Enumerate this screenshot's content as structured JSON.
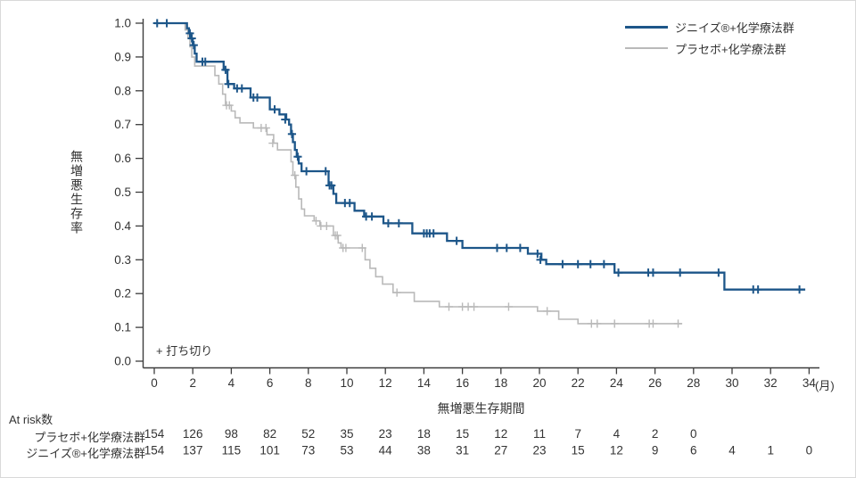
{
  "figure": {
    "background": "#ffffff",
    "border_color": "#d9d9d9",
    "text_color": "#333333",
    "axis_color": "#3d3d3d"
  },
  "legend": {
    "items": [
      {
        "label": "ジニイズ®+化学療法群",
        "color": "#1d5689",
        "thickness": 3
      },
      {
        "label": "プラセボ+化学療法群",
        "color": "#b9b9b9",
        "thickness": 2
      }
    ]
  },
  "chart_data": {
    "type": "line",
    "subtype": "kaplan-meier-step",
    "title": "",
    "xlabel": "無増悪生存期間",
    "x_unit": "(月)",
    "ylabel": "無増悪生存率",
    "censor_note": "+ 打ち切り",
    "xlim": [
      0,
      34
    ],
    "ylim": [
      0.0,
      1.0
    ],
    "xticks": [
      0,
      2,
      4,
      6,
      8,
      10,
      12,
      14,
      16,
      18,
      20,
      22,
      24,
      26,
      28,
      30,
      32,
      34
    ],
    "ytick_labels": [
      "0.0",
      "0.1",
      "0.2",
      "0.3",
      "0.4",
      "0.5",
      "0.6",
      "0.7",
      "0.8",
      "0.9",
      "1.0"
    ],
    "grid": false,
    "legend_position": "top-right",
    "series": [
      {
        "name": "ジニイズ®+化学療法群",
        "color": "#1d5689",
        "line_width": 2.3,
        "censor_width": 2.0,
        "points": [
          [
            0,
            1.0
          ],
          [
            1.7,
            0.985
          ],
          [
            1.8,
            0.97
          ],
          [
            1.9,
            0.955
          ],
          [
            2.0,
            0.935
          ],
          [
            2.1,
            0.91
          ],
          [
            2.2,
            0.886
          ],
          [
            3.6,
            0.862
          ],
          [
            3.8,
            0.82
          ],
          [
            4.15,
            0.807
          ],
          [
            5.0,
            0.78
          ],
          [
            6.0,
            0.745
          ],
          [
            6.5,
            0.73
          ],
          [
            6.85,
            0.715
          ],
          [
            7.0,
            0.7
          ],
          [
            7.1,
            0.672
          ],
          [
            7.2,
            0.648
          ],
          [
            7.3,
            0.625
          ],
          [
            7.4,
            0.605
          ],
          [
            7.5,
            0.585
          ],
          [
            7.65,
            0.562
          ],
          [
            9.05,
            0.52
          ],
          [
            9.3,
            0.495
          ],
          [
            9.45,
            0.468
          ],
          [
            10.4,
            0.445
          ],
          [
            10.9,
            0.428
          ],
          [
            11.9,
            0.408
          ],
          [
            13.4,
            0.378
          ],
          [
            15.2,
            0.356
          ],
          [
            16.0,
            0.335
          ],
          [
            19.4,
            0.318
          ],
          [
            20.1,
            0.3
          ],
          [
            20.35,
            0.287
          ],
          [
            23.9,
            0.262
          ],
          [
            29.6,
            0.212
          ]
        ],
        "end_time": 33.8,
        "censors": [
          [
            0.15,
            1.0
          ],
          [
            0.65,
            1.0
          ],
          [
            1.85,
            0.97
          ],
          [
            1.95,
            0.955
          ],
          [
            2.05,
            0.935
          ],
          [
            2.5,
            0.886
          ],
          [
            2.65,
            0.886
          ],
          [
            3.7,
            0.862
          ],
          [
            3.85,
            0.82
          ],
          [
            4.3,
            0.807
          ],
          [
            4.55,
            0.807
          ],
          [
            5.15,
            0.78
          ],
          [
            5.35,
            0.78
          ],
          [
            6.25,
            0.745
          ],
          [
            6.8,
            0.715
          ],
          [
            7.15,
            0.672
          ],
          [
            7.45,
            0.605
          ],
          [
            7.9,
            0.562
          ],
          [
            8.9,
            0.562
          ],
          [
            9.1,
            0.52
          ],
          [
            9.2,
            0.52
          ],
          [
            9.9,
            0.468
          ],
          [
            10.15,
            0.468
          ],
          [
            11.0,
            0.428
          ],
          [
            11.3,
            0.428
          ],
          [
            12.15,
            0.408
          ],
          [
            12.7,
            0.408
          ],
          [
            14.0,
            0.378
          ],
          [
            14.15,
            0.378
          ],
          [
            14.3,
            0.378
          ],
          [
            14.5,
            0.378
          ],
          [
            15.7,
            0.356
          ],
          [
            17.8,
            0.335
          ],
          [
            18.3,
            0.335
          ],
          [
            19.0,
            0.335
          ],
          [
            19.9,
            0.318
          ],
          [
            20.05,
            0.3
          ],
          [
            21.2,
            0.287
          ],
          [
            22.0,
            0.287
          ],
          [
            22.65,
            0.287
          ],
          [
            23.35,
            0.287
          ],
          [
            24.1,
            0.262
          ],
          [
            25.65,
            0.262
          ],
          [
            25.9,
            0.262
          ],
          [
            27.3,
            0.262
          ],
          [
            29.3,
            0.262
          ],
          [
            31.1,
            0.212
          ],
          [
            31.35,
            0.212
          ],
          [
            33.5,
            0.212
          ]
        ]
      },
      {
        "name": "プラセボ+化学療法群",
        "color": "#b9b9b9",
        "line_width": 1.6,
        "censor_width": 1.4,
        "points": [
          [
            0,
            1.0
          ],
          [
            1.6,
            0.98
          ],
          [
            1.75,
            0.955
          ],
          [
            1.85,
            0.93
          ],
          [
            1.95,
            0.9
          ],
          [
            2.1,
            0.873
          ],
          [
            3.15,
            0.845
          ],
          [
            3.35,
            0.82
          ],
          [
            3.55,
            0.79
          ],
          [
            3.7,
            0.757
          ],
          [
            4.0,
            0.74
          ],
          [
            4.2,
            0.72
          ],
          [
            4.45,
            0.705
          ],
          [
            5.15,
            0.69
          ],
          [
            5.85,
            0.67
          ],
          [
            6.2,
            0.645
          ],
          [
            6.4,
            0.625
          ],
          [
            7.1,
            0.59
          ],
          [
            7.2,
            0.55
          ],
          [
            7.35,
            0.515
          ],
          [
            7.5,
            0.48
          ],
          [
            7.65,
            0.45
          ],
          [
            7.8,
            0.43
          ],
          [
            8.3,
            0.415
          ],
          [
            8.6,
            0.4
          ],
          [
            9.3,
            0.372
          ],
          [
            9.55,
            0.35
          ],
          [
            9.7,
            0.335
          ],
          [
            10.95,
            0.3
          ],
          [
            11.2,
            0.275
          ],
          [
            11.5,
            0.25
          ],
          [
            11.85,
            0.228
          ],
          [
            12.4,
            0.203
          ],
          [
            13.5,
            0.177
          ],
          [
            14.8,
            0.161
          ],
          [
            19.9,
            0.148
          ],
          [
            21.0,
            0.124
          ],
          [
            22.0,
            0.111
          ]
        ],
        "end_time": 27.4,
        "censors": [
          [
            3.75,
            0.757
          ],
          [
            3.9,
            0.757
          ],
          [
            5.55,
            0.69
          ],
          [
            5.8,
            0.69
          ],
          [
            6.15,
            0.645
          ],
          [
            7.3,
            0.55
          ],
          [
            8.4,
            0.415
          ],
          [
            8.65,
            0.4
          ],
          [
            8.95,
            0.4
          ],
          [
            9.4,
            0.372
          ],
          [
            9.5,
            0.372
          ],
          [
            9.8,
            0.335
          ],
          [
            9.95,
            0.335
          ],
          [
            10.8,
            0.335
          ],
          [
            12.6,
            0.203
          ],
          [
            15.3,
            0.161
          ],
          [
            16.0,
            0.161
          ],
          [
            16.3,
            0.161
          ],
          [
            16.6,
            0.161
          ],
          [
            18.4,
            0.161
          ],
          [
            20.4,
            0.148
          ],
          [
            22.7,
            0.111
          ],
          [
            23.0,
            0.111
          ],
          [
            23.9,
            0.111
          ],
          [
            25.7,
            0.111
          ],
          [
            25.9,
            0.111
          ],
          [
            27.2,
            0.111
          ]
        ]
      }
    ]
  },
  "at_risk": {
    "header": "At risk数",
    "months": [
      0,
      2,
      4,
      6,
      8,
      10,
      12,
      14,
      16,
      18,
      20,
      22,
      24,
      26,
      28,
      30,
      32,
      34
    ],
    "rows": [
      {
        "label": "プラセボ+化学療法群",
        "counts": [
          154,
          126,
          98,
          82,
          52,
          35,
          23,
          18,
          15,
          12,
          11,
          7,
          4,
          2,
          0
        ]
      },
      {
        "label": "ジニイズ®+化学療法群",
        "counts": [
          154,
          137,
          115,
          101,
          73,
          53,
          44,
          38,
          31,
          27,
          23,
          15,
          12,
          9,
          6,
          4,
          1,
          0
        ]
      }
    ]
  }
}
